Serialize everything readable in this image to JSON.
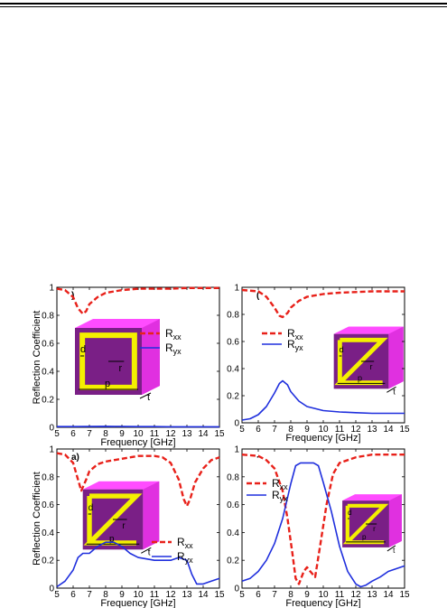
{
  "chart_data": [
    {
      "type": "line",
      "panel_label": ")",
      "xlabel": "Frequency [GHz]",
      "ylabel": "Reflection Coefficient",
      "xlim": [
        5,
        15
      ],
      "ylim": [
        0,
        1
      ],
      "xticks": [
        "5",
        "6",
        "7",
        "8",
        "9",
        "10",
        "11",
        "12",
        "13",
        "14",
        "15"
      ],
      "yticks": [
        "0",
        "0.2",
        "0.4",
        "0.6",
        "0.8",
        "1"
      ],
      "legend_position": "center-right",
      "inset_labels": [
        "d",
        "r",
        "p",
        "t"
      ],
      "series": [
        {
          "name": "R",
          "sub": "xx",
          "color": "#e8211a",
          "dash": true,
          "x": [
            5,
            5.5,
            6,
            6.3,
            6.6,
            6.8,
            7,
            7.5,
            8,
            8.5,
            9,
            10,
            11,
            12,
            13,
            14,
            15
          ],
          "y": [
            0.99,
            0.98,
            0.93,
            0.85,
            0.81,
            0.83,
            0.88,
            0.93,
            0.96,
            0.97,
            0.98,
            0.99,
            0.99,
            0.99,
            0.995,
            0.995,
            0.995
          ]
        },
        {
          "name": "R",
          "sub": "yx",
          "color": "#1f2fdd",
          "dash": false,
          "x": [
            5,
            6,
            7,
            8,
            9,
            10,
            11,
            12,
            13,
            14,
            15
          ],
          "y": [
            0.005,
            0.005,
            0.006,
            0.007,
            0.006,
            0.005,
            0.005,
            0.004,
            0.004,
            0.004,
            0.004
          ]
        }
      ]
    },
    {
      "type": "line",
      "panel_label": "(",
      "xlabel": "Frequency [GHz]",
      "ylabel": "",
      "xlim": [
        5,
        15
      ],
      "ylim": [
        0,
        1
      ],
      "xticks": [
        "5",
        "6",
        "7",
        "8",
        "9",
        "10",
        "11",
        "12",
        "13",
        "14",
        "15"
      ],
      "yticks": [
        "0",
        "0.2",
        "0.4",
        "0.6",
        "0.8",
        "1"
      ],
      "legend_position": "center-left",
      "inset_labels": [
        "d",
        "r",
        "p",
        "t"
      ],
      "series": [
        {
          "name": "R",
          "sub": "xx",
          "color": "#e8211a",
          "dash": true,
          "x": [
            5,
            6,
            6.5,
            7,
            7.3,
            7.5,
            7.8,
            8,
            8.5,
            9,
            10,
            11,
            12,
            13,
            14,
            15
          ],
          "y": [
            0.98,
            0.97,
            0.93,
            0.85,
            0.79,
            0.78,
            0.81,
            0.85,
            0.9,
            0.93,
            0.95,
            0.96,
            0.965,
            0.97,
            0.97,
            0.97
          ]
        },
        {
          "name": "R",
          "sub": "yx",
          "color": "#1f2fdd",
          "dash": false,
          "x": [
            5,
            5.5,
            6,
            6.5,
            7,
            7.3,
            7.5,
            7.8,
            8,
            8.5,
            9,
            10,
            11,
            12,
            13,
            14,
            15
          ],
          "y": [
            0.02,
            0.03,
            0.06,
            0.12,
            0.22,
            0.29,
            0.31,
            0.28,
            0.23,
            0.16,
            0.12,
            0.09,
            0.08,
            0.075,
            0.07,
            0.07,
            0.07
          ]
        }
      ]
    },
    {
      "type": "line",
      "panel_label": "a)",
      "xlabel": "Frequency [GHz]",
      "ylabel": "Reflection Coefficient",
      "xlim": [
        5,
        15
      ],
      "ylim": [
        0,
        1
      ],
      "xticks": [
        "5",
        "6",
        "7",
        "8",
        "9",
        "10",
        "11",
        "12",
        "13",
        "14",
        "15"
      ],
      "yticks": [
        "0",
        "0.2",
        "0.4",
        "0.6",
        "0.8",
        "1"
      ],
      "legend_position": "bottom-right",
      "inset_labels": [
        "d",
        "r",
        "p",
        "t"
      ],
      "series": [
        {
          "name": "R",
          "sub": "xx",
          "color": "#e8211a",
          "dash": true,
          "x": [
            5,
            5.5,
            6,
            6.3,
            6.5,
            6.8,
            7,
            7.5,
            8,
            9,
            10,
            11,
            11.5,
            12,
            12.5,
            12.8,
            13,
            13.2,
            13.5,
            14,
            14.5,
            15
          ],
          "y": [
            0.97,
            0.96,
            0.9,
            0.78,
            0.7,
            0.78,
            0.84,
            0.89,
            0.91,
            0.93,
            0.95,
            0.95,
            0.94,
            0.9,
            0.78,
            0.64,
            0.59,
            0.64,
            0.76,
            0.86,
            0.92,
            0.94
          ]
        },
        {
          "name": "R",
          "sub": "yx",
          "color": "#1f2fdd",
          "dash": false,
          "x": [
            5,
            5.5,
            6,
            6.3,
            6.6,
            7,
            7.5,
            8,
            8.5,
            9,
            9.5,
            10,
            11,
            12,
            12.5,
            13,
            13.3,
            13.6,
            14,
            14.5,
            15
          ],
          "y": [
            0.01,
            0.05,
            0.13,
            0.22,
            0.25,
            0.25,
            0.3,
            0.33,
            0.33,
            0.3,
            0.25,
            0.22,
            0.2,
            0.2,
            0.22,
            0.2,
            0.1,
            0.03,
            0.03,
            0.05,
            0.07
          ]
        }
      ]
    },
    {
      "type": "line",
      "panel_label": "·",
      "xlabel": "Frequency [GHz]",
      "ylabel": "",
      "xlim": [
        5,
        15
      ],
      "ylim": [
        0,
        1
      ],
      "xticks": [
        "5",
        "6",
        "7",
        "8",
        "9",
        "10",
        "11",
        "12",
        "13",
        "14",
        "15"
      ],
      "yticks": [
        "0",
        "0.2",
        "0.4",
        "0.6",
        "0.8",
        "1"
      ],
      "legend_position": "center-left",
      "inset_labels": [
        "d",
        "r",
        "p",
        "t"
      ],
      "series": [
        {
          "name": "R",
          "sub": "xx",
          "color": "#e8211a",
          "dash": true,
          "x": [
            5,
            6,
            6.5,
            7,
            7.5,
            7.8,
            8.1,
            8.3,
            8.5,
            8.8,
            9,
            9.2,
            9.5,
            9.8,
            10.2,
            10.6,
            11,
            12,
            13,
            14,
            15
          ],
          "y": [
            0.96,
            0.95,
            0.92,
            0.86,
            0.7,
            0.5,
            0.25,
            0.07,
            0.03,
            0.12,
            0.15,
            0.12,
            0.08,
            0.3,
            0.6,
            0.82,
            0.9,
            0.94,
            0.96,
            0.96,
            0.96
          ]
        },
        {
          "name": "R",
          "sub": "yx",
          "color": "#1f2fdd",
          "dash": false,
          "x": [
            5,
            5.5,
            6,
            6.5,
            7,
            7.5,
            8,
            8.3,
            8.6,
            9,
            9.4,
            9.7,
            10,
            10.5,
            11,
            11.5,
            12,
            12.3,
            12.6,
            13,
            13.5,
            14,
            15
          ],
          "y": [
            0.05,
            0.07,
            0.12,
            0.2,
            0.32,
            0.5,
            0.75,
            0.88,
            0.9,
            0.9,
            0.9,
            0.88,
            0.76,
            0.55,
            0.3,
            0.12,
            0.03,
            0.01,
            0.02,
            0.05,
            0.08,
            0.12,
            0.16
          ]
        }
      ]
    }
  ]
}
